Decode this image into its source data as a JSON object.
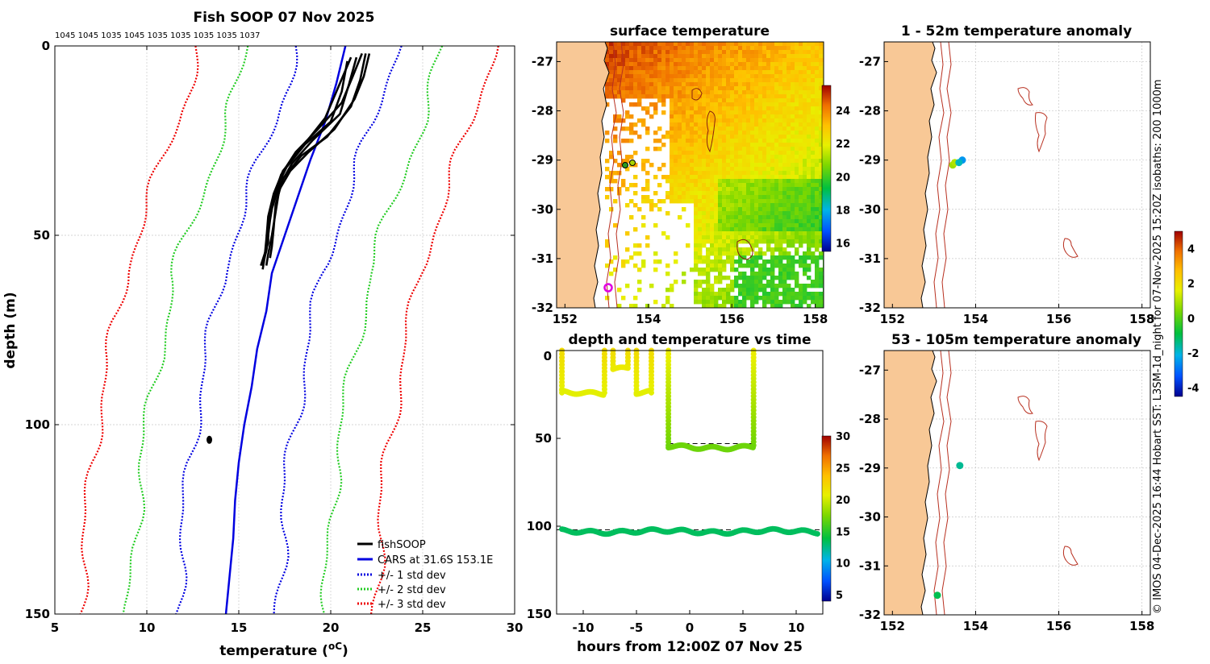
{
  "meta": {
    "title": "Fish SOOP 07 Nov 2025"
  },
  "colors": {
    "fishsoop": "#000000",
    "cars": "#0000e0",
    "std1": "#0000e0",
    "std2": "#22cc22",
    "std3": "#ee0000",
    "land": "#f8c896",
    "coast": "#000000",
    "isobath": "#b83020"
  },
  "chart_data": [
    {
      "id": "profile",
      "type": "line",
      "title": "Fish SOOP 07 Nov 2025",
      "xlabel": "temperature (",
      "xlabel_unit": "oC",
      "xlabel_close": ")",
      "ylabel": "depth (m)",
      "xlim": [
        5,
        30
      ],
      "ylim": [
        150,
        0
      ],
      "xticks": [
        5,
        10,
        15,
        20,
        25,
        30
      ],
      "yticks": [
        0,
        50,
        100,
        150
      ],
      "header_labels": "1045 1045 1035 1045 1035 1035 1035 1035 1037",
      "legend": [
        "fishSOOP",
        "CARS at 31.6S 153.1E",
        "+/- 1 std dev",
        "+/- 2 std dev",
        "+/- 3 std dev"
      ],
      "cars_mean": [
        [
          20.8,
          0
        ],
        [
          20.3,
          10
        ],
        [
          19.7,
          20
        ],
        [
          18.9,
          30
        ],
        [
          18.2,
          40
        ],
        [
          17.5,
          50
        ],
        [
          16.8,
          60
        ],
        [
          16.5,
          70
        ],
        [
          16.0,
          80
        ],
        [
          15.7,
          90
        ],
        [
          15.3,
          100
        ],
        [
          15.0,
          110
        ],
        [
          14.8,
          120
        ],
        [
          14.7,
          130
        ],
        [
          14.5,
          140
        ],
        [
          14.3,
          150
        ]
      ],
      "std_offsets": [
        2.7,
        5.3,
        8.0
      ],
      "fishsoop_casts": [
        [
          [
            21.7,
            2
          ],
          [
            21.2,
            8
          ],
          [
            20.6,
            15
          ],
          [
            19.3,
            22
          ],
          [
            18.1,
            28
          ],
          [
            17.3,
            34
          ],
          [
            16.9,
            40
          ],
          [
            16.7,
            46
          ],
          [
            16.6,
            50
          ],
          [
            16.5,
            54
          ],
          [
            16.4,
            56
          ],
          [
            16.3,
            59
          ]
        ],
        [
          [
            21.4,
            3
          ],
          [
            21.0,
            10
          ],
          [
            20.5,
            18
          ],
          [
            19.0,
            25
          ],
          [
            17.9,
            31
          ],
          [
            17.2,
            37
          ],
          [
            16.8,
            43
          ],
          [
            16.6,
            48
          ],
          [
            16.6,
            52
          ],
          [
            16.4,
            55
          ],
          [
            16.2,
            58
          ]
        ],
        [
          [
            20.9,
            4
          ],
          [
            20.6,
            12
          ],
          [
            20.0,
            20
          ],
          [
            18.6,
            26
          ],
          [
            17.6,
            32
          ],
          [
            17.0,
            38
          ],
          [
            16.7,
            44
          ],
          [
            16.6,
            50
          ],
          [
            16.5,
            54
          ],
          [
            16.3,
            57
          ]
        ],
        [
          [
            21.9,
            2
          ],
          [
            21.6,
            9
          ],
          [
            21.1,
            16
          ],
          [
            19.8,
            24
          ],
          [
            18.4,
            29
          ],
          [
            17.4,
            35
          ],
          [
            17.0,
            42
          ],
          [
            16.9,
            48
          ],
          [
            16.8,
            53
          ],
          [
            16.7,
            56
          ]
        ],
        [
          [
            21.1,
            3
          ],
          [
            20.4,
            11
          ],
          [
            19.7,
            19
          ],
          [
            18.4,
            27
          ],
          [
            17.4,
            33
          ],
          [
            16.9,
            39
          ],
          [
            16.6,
            45
          ],
          [
            16.5,
            51
          ],
          [
            16.4,
            56
          ],
          [
            16.3,
            58
          ]
        ],
        [
          [
            22.1,
            2
          ],
          [
            21.8,
            8
          ],
          [
            21.3,
            14
          ],
          [
            20.2,
            22
          ],
          [
            18.8,
            28
          ],
          [
            17.8,
            33
          ],
          [
            17.2,
            38
          ],
          [
            17.0,
            44
          ],
          [
            16.8,
            50
          ],
          [
            16.6,
            55
          ],
          [
            16.5,
            58
          ]
        ]
      ],
      "isolated_point": {
        "temp": 13.4,
        "depth": 104
      }
    },
    {
      "id": "sst_map",
      "type": "heatmap",
      "title": "surface temperature",
      "xticks": [
        152,
        154,
        156,
        158
      ],
      "yticks": [
        -27,
        -28,
        -29,
        -30,
        -31,
        -32
      ],
      "xlim": [
        151.8,
        158.2
      ],
      "ylim": [
        -32,
        -26.6
      ],
      "colorbar_ticks": [
        16,
        18,
        20,
        22,
        24
      ],
      "colorbar_range": [
        15.5,
        25.5
      ]
    },
    {
      "id": "depth_time",
      "type": "scatter",
      "title": "depth and temperature vs time",
      "xlabel": "hours from 12:00Z 07 Nov 25",
      "xlim": [
        -12.5,
        12.5
      ],
      "ylim": [
        150,
        0
      ],
      "xticks": [
        -10,
        -5,
        0,
        5,
        10
      ],
      "yticks": [
        0,
        50,
        100,
        150
      ],
      "colorbar_ticks": [
        5,
        10,
        15,
        20,
        25,
        30
      ],
      "colorbar_range": [
        4,
        30
      ],
      "reference_depths": [
        {
          "x0": -12.2,
          "x1": -8.0,
          "depth": 24
        },
        {
          "x0": -7.0,
          "x1": -6.0,
          "depth": 10
        },
        {
          "x0": -5.0,
          "x1": -3.5,
          "depth": 24
        },
        {
          "x0": -2.0,
          "x1": 6.0,
          "depth": 53
        },
        {
          "x0": -12.5,
          "x1": 12.5,
          "depth": 102
        }
      ],
      "segments": [
        {
          "x0": -12.0,
          "x1": -8.0,
          "depth": 24,
          "temp": 20.5,
          "profile_temp": 22
        },
        {
          "x0": -7.2,
          "x1": -5.8,
          "depth": 10,
          "temp": 21,
          "profile_temp": 22
        },
        {
          "x0": -5.0,
          "x1": -3.6,
          "depth": 24,
          "temp": 20.5,
          "profile_temp": 22
        },
        {
          "x0": -2.0,
          "x1": 6.0,
          "depth": 55,
          "temp": 17,
          "profile_temp": 21
        },
        {
          "x0": -12.0,
          "x1": 12.0,
          "depth": 103,
          "temp": 13.3,
          "profile_temp": null
        }
      ]
    },
    {
      "id": "anomaly_shallow",
      "type": "scatter",
      "title": "1 - 52m temperature anomaly",
      "xticks": [
        152,
        154,
        156,
        158
      ],
      "yticks": [
        -27,
        -28,
        -29,
        -30,
        -31,
        -32
      ],
      "xlim": [
        151.8,
        158.2
      ],
      "ylim": [
        -32,
        -26.6
      ],
      "points": [
        [
          153.45,
          -29.1,
          0.8
        ],
        [
          153.5,
          -29.05,
          1.0
        ],
        [
          153.68,
          -29.0,
          -2.5
        ],
        [
          153.6,
          -29.05,
          -1.8
        ]
      ]
    },
    {
      "id": "anomaly_deep",
      "type": "scatter",
      "title": "53 - 105m temperature anomaly",
      "xticks": [
        152,
        154,
        156,
        158
      ],
      "yticks": [
        -27,
        -28,
        -29,
        -30,
        -31,
        -32
      ],
      "xlim": [
        151.8,
        158.2
      ],
      "ylim": [
        -32,
        -26.6
      ],
      "points": [
        [
          153.62,
          -28.95,
          -1.5
        ],
        [
          153.08,
          -31.6,
          -1.0
        ]
      ]
    },
    {
      "id": "anomaly_colorbar",
      "type": "colorbar",
      "ticks": [
        4,
        2,
        0,
        -2,
        -4
      ],
      "range": [
        -4.5,
        5
      ]
    }
  ],
  "side_caption": "© IMOS 04-Dec-2025 16:44 Hobart SST: L3SM-1d_night for 07-Nov-2025 15:20Z isobaths: 200  1000m"
}
